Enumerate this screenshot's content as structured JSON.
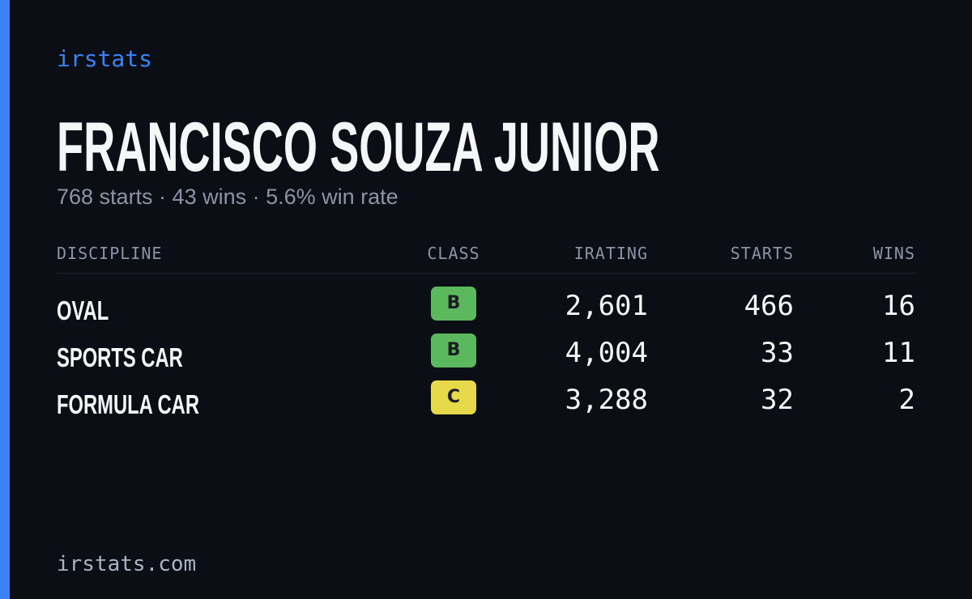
{
  "brand": "irstats",
  "title": "FRANCISCO SOUZA JUNIOR",
  "subtitle": "768 starts · 43 wins · 5.6% win rate",
  "table": {
    "headers": [
      "DISCIPLINE",
      "CLASS",
      "IRATING",
      "STARTS",
      "WINS"
    ],
    "rows": [
      {
        "discipline": "OVAL",
        "class": "B",
        "class_color": "#5cb85c",
        "irating": "2,601",
        "starts": "466",
        "wins": "16"
      },
      {
        "discipline": "SPORTS CAR",
        "class": "B",
        "class_color": "#5cb85c",
        "irating": "4,004",
        "starts": "33",
        "wins": "11"
      },
      {
        "discipline": "FORMULA CAR",
        "class": "C",
        "class_color": "#e6da4a",
        "irating": "3,288",
        "starts": "32",
        "wins": "2"
      }
    ]
  },
  "footer": "irstats.com"
}
